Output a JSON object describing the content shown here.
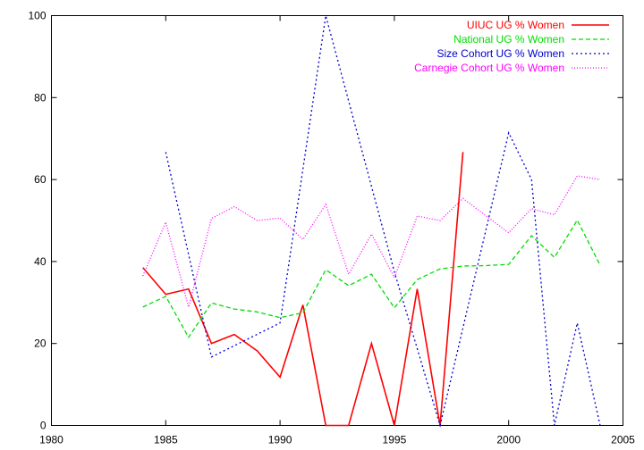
{
  "chart_data": {
    "type": "line",
    "title": "",
    "xlabel": "",
    "ylabel": "",
    "xlim": [
      1980,
      2005
    ],
    "ylim": [
      0,
      100
    ],
    "xticks": [
      1980,
      1985,
      1990,
      1995,
      2000,
      2005
    ],
    "yticks": [
      0,
      20,
      40,
      60,
      80,
      100
    ],
    "grid": false,
    "legend_position": "top-right",
    "series": [
      {
        "name": "UIUC UG % Women",
        "color": "#ff0000",
        "dash": "solid",
        "points": [
          [
            1984,
            38.5
          ],
          [
            1985,
            32.0
          ],
          [
            1986,
            33.3
          ],
          [
            1987,
            20.0
          ],
          [
            1988,
            22.2
          ],
          [
            1989,
            18.2
          ],
          [
            1990,
            11.8
          ],
          [
            1991,
            29.4
          ],
          [
            1992,
            0
          ],
          [
            1993,
            0
          ],
          [
            1994,
            20.0
          ],
          [
            1995,
            0
          ],
          [
            1996,
            33.3
          ],
          [
            1997,
            0
          ],
          [
            1998,
            66.7
          ]
        ]
      },
      {
        "name": "National UG % Women",
        "color": "#00dd00",
        "dash": "dashed",
        "points": [
          [
            1984,
            28.9
          ],
          [
            1985,
            31.5
          ],
          [
            1986,
            21.5
          ],
          [
            1987,
            29.9
          ],
          [
            1988,
            28.4
          ],
          [
            1989,
            27.7
          ],
          [
            1990,
            26.3
          ],
          [
            1991,
            27.5
          ],
          [
            1992,
            38.0
          ],
          [
            1993,
            34.1
          ],
          [
            1994,
            36.9
          ],
          [
            1995,
            28.7
          ],
          [
            1996,
            35.6
          ],
          [
            1997,
            38.2
          ],
          [
            1998,
            38.9
          ],
          [
            1999,
            39.0
          ],
          [
            2000,
            39.3
          ],
          [
            2001,
            46.3
          ],
          [
            2002,
            41.0
          ],
          [
            2003,
            50.1
          ],
          [
            2004,
            39.1
          ]
        ]
      },
      {
        "name": "Size Cohort UG % Women",
        "color": "#0000cc",
        "dash": "dotted",
        "points": [
          [
            1985,
            66.7
          ],
          [
            1987,
            16.7
          ],
          [
            1990,
            25.0
          ],
          [
            1992,
            100.0
          ],
          [
            1995,
            37.5
          ],
          [
            1997,
            0
          ],
          [
            2000,
            71.4
          ],
          [
            2001,
            60.0
          ],
          [
            2002,
            0
          ],
          [
            2003,
            25.0
          ],
          [
            2004,
            0
          ]
        ]
      },
      {
        "name": "Carnegie Cohort UG % Women",
        "color": "#ff00ff",
        "dash": "dotted-fine",
        "points": [
          [
            1984,
            36.5
          ],
          [
            1985,
            49.6
          ],
          [
            1986,
            28.9
          ],
          [
            1987,
            50.5
          ],
          [
            1988,
            53.4
          ],
          [
            1989,
            50.0
          ],
          [
            1990,
            50.6
          ],
          [
            1991,
            45.4
          ],
          [
            1992,
            53.9
          ],
          [
            1993,
            36.9
          ],
          [
            1994,
            46.7
          ],
          [
            1995,
            36.1
          ],
          [
            1996,
            51.1
          ],
          [
            1997,
            50.0
          ],
          [
            1998,
            55.4
          ],
          [
            1999,
            51.2
          ],
          [
            2000,
            47.0
          ],
          [
            2001,
            52.9
          ],
          [
            2002,
            51.4
          ],
          [
            2003,
            60.9
          ],
          [
            2004,
            60.0
          ]
        ]
      }
    ]
  }
}
